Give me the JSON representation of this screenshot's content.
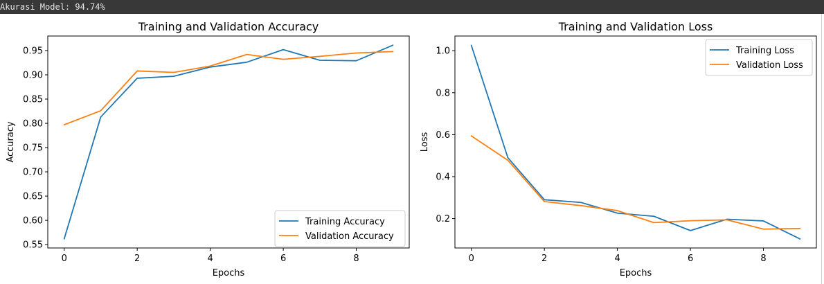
{
  "console": {
    "output_text": "Akurasi Model: 94.74%"
  },
  "colors": {
    "training": "#1f77b4",
    "validation": "#ff7f0e",
    "console_bg": "#383838",
    "console_text": "#e8e8e8"
  },
  "chart_data": [
    {
      "type": "line",
      "title": "Training and Validation Accuracy",
      "xlabel": "Epochs",
      "ylabel": "Accuracy",
      "x": [
        0,
        1,
        2,
        3,
        4,
        5,
        6,
        7,
        8,
        9
      ],
      "xticks": [
        0,
        2,
        4,
        6,
        8
      ],
      "yticks": [
        0.55,
        0.6,
        0.65,
        0.7,
        0.75,
        0.8,
        0.85,
        0.9,
        0.95
      ],
      "ytick_labels": [
        "0.55",
        "0.60",
        "0.65",
        "0.70",
        "0.75",
        "0.80",
        "0.85",
        "0.90",
        "0.95"
      ],
      "xlim": [
        -0.45,
        9.45
      ],
      "ylim": [
        0.543,
        0.98
      ],
      "grid": false,
      "legend_position": "lower-right",
      "series": [
        {
          "name": "Training Accuracy",
          "color": "#1f77b4",
          "values": [
            0.562,
            0.813,
            0.893,
            0.897,
            0.916,
            0.926,
            0.952,
            0.93,
            0.929,
            0.961
          ]
        },
        {
          "name": "Validation Accuracy",
          "color": "#ff7f0e",
          "values": [
            0.797,
            0.826,
            0.908,
            0.905,
            0.918,
            0.942,
            0.932,
            0.938,
            0.945,
            0.948
          ]
        }
      ]
    },
    {
      "type": "line",
      "title": "Training and Validation Loss",
      "xlabel": "Epochs",
      "ylabel": "Loss",
      "x": [
        0,
        1,
        2,
        3,
        4,
        5,
        6,
        7,
        8,
        9
      ],
      "xticks": [
        0,
        2,
        4,
        6,
        8
      ],
      "yticks": [
        0.2,
        0.4,
        0.6,
        0.8,
        1.0
      ],
      "ytick_labels": [
        "0.2",
        "0.4",
        "0.6",
        "0.8",
        "1.0"
      ],
      "xlim": [
        -0.45,
        9.45
      ],
      "ylim": [
        0.06,
        1.07
      ],
      "grid": false,
      "legend_position": "upper-right",
      "series": [
        {
          "name": "Training Loss",
          "color": "#1f77b4",
          "values": [
            1.025,
            0.49,
            0.29,
            0.277,
            0.226,
            0.211,
            0.143,
            0.197,
            0.189,
            0.103
          ]
        },
        {
          "name": "Validation Loss",
          "color": "#ff7f0e",
          "values": [
            0.594,
            0.478,
            0.281,
            0.262,
            0.238,
            0.181,
            0.19,
            0.194,
            0.15,
            0.153
          ]
        }
      ]
    }
  ]
}
